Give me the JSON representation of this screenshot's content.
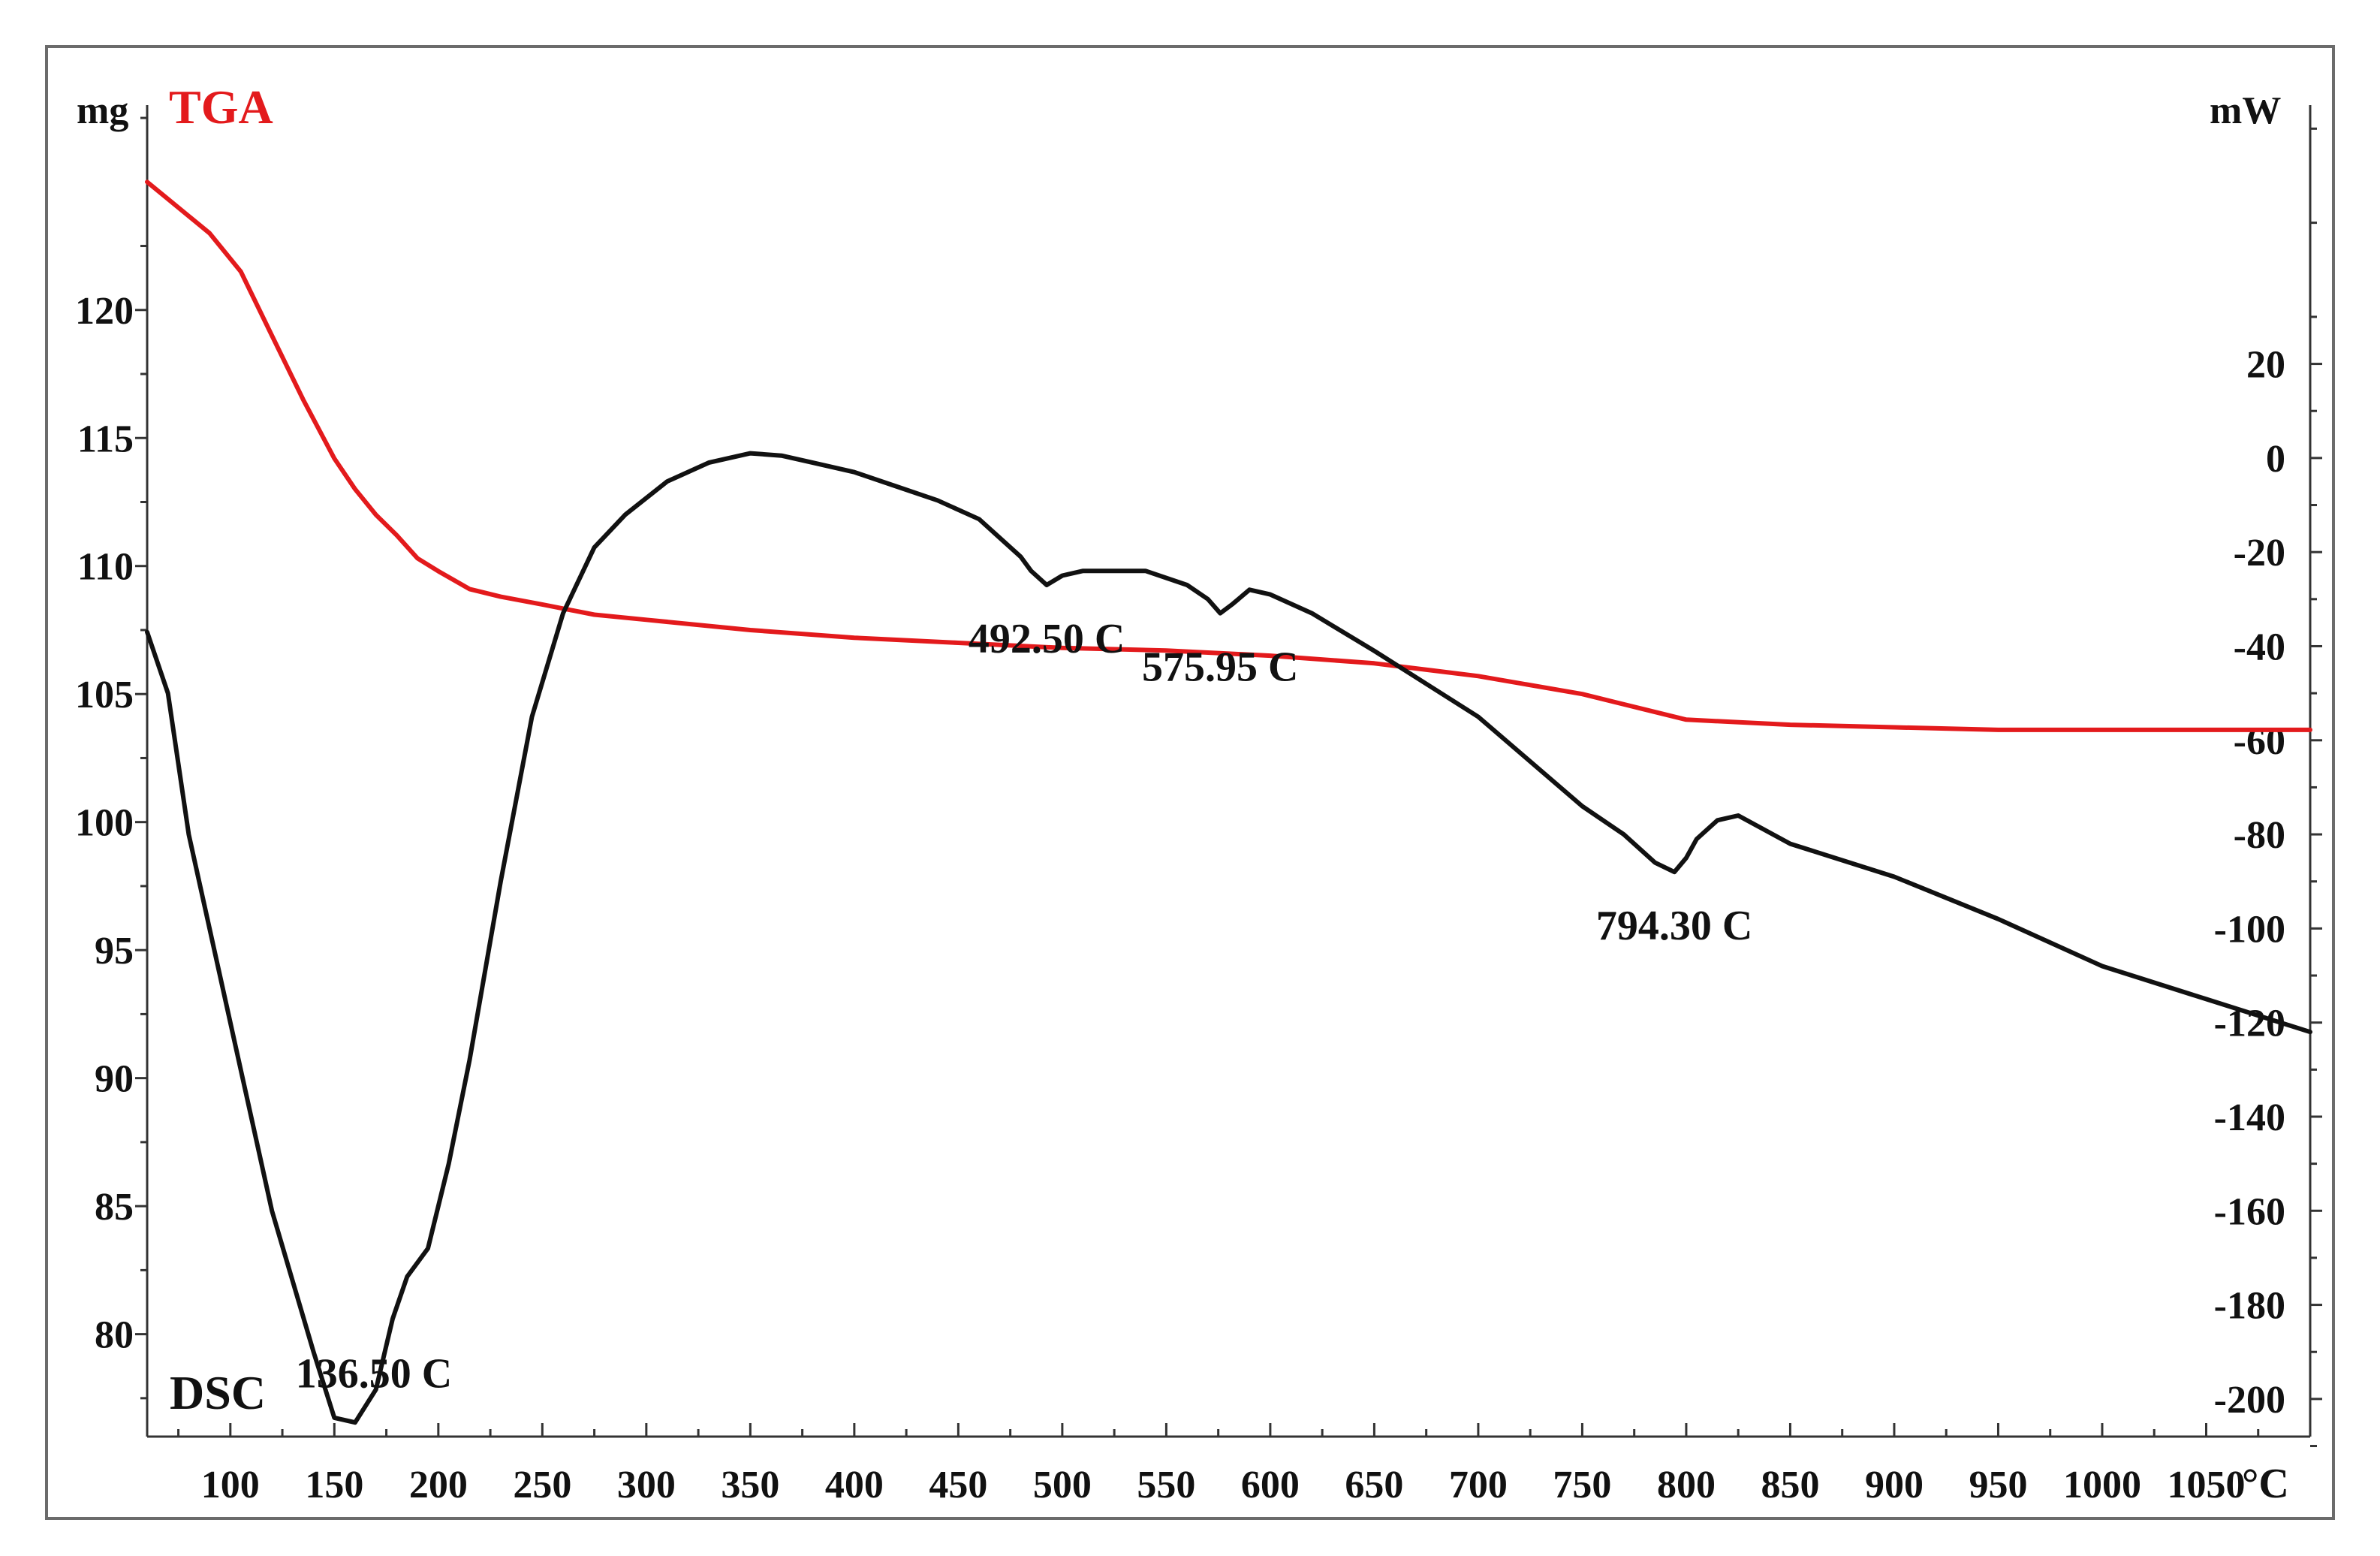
{
  "chart_data": {
    "type": "line",
    "title": "",
    "x_unit": "°C",
    "left_axis_unit": "mg",
    "right_axis_unit": "mW",
    "xlim": [
      60,
      1100
    ],
    "ylim_left": [
      76,
      128
    ],
    "ylim_right": [
      -208,
      75
    ],
    "x_ticks": [
      100,
      150,
      200,
      250,
      300,
      350,
      400,
      450,
      500,
      550,
      600,
      650,
      700,
      750,
      800,
      850,
      900,
      950,
      1000,
      1050
    ],
    "x_tick_labels": [
      "100",
      "150",
      "200",
      "250",
      "300",
      "350",
      "400",
      "450",
      "500",
      "550",
      "600",
      "650",
      "700",
      "750",
      "800",
      "850",
      "900",
      "950",
      "1000",
      "1050"
    ],
    "left_ticks": [
      80,
      85,
      90,
      95,
      100,
      105,
      110,
      115,
      120
    ],
    "left_tick_labels": [
      "80",
      "85",
      "90",
      "95",
      "100",
      "105",
      "110",
      "115",
      "120"
    ],
    "right_ticks": [
      20,
      0,
      -20,
      -40,
      -60,
      -80,
      -100,
      -120,
      -140,
      -160,
      -180,
      -200
    ],
    "right_tick_labels": [
      "20",
      "0",
      "-20",
      "-40",
      "-60",
      "-80",
      "-100",
      "-120",
      "-140",
      "-160",
      "-180",
      "-200"
    ],
    "colors": {
      "tga": "#e31a1c",
      "dsc": "#111111",
      "frame": "#6b6b6b"
    },
    "series": [
      {
        "name": "TGA",
        "axis": "left",
        "x": [
          60,
          75,
          90,
          105,
          120,
          135,
          150,
          160,
          170,
          180,
          190,
          200,
          215,
          230,
          250,
          275,
          300,
          350,
          400,
          450,
          500,
          550,
          600,
          650,
          700,
          750,
          780,
          800,
          850,
          900,
          950,
          1000,
          1050,
          1100
        ],
        "y": [
          125,
          124,
          123,
          121.5,
          119,
          116.5,
          114.2,
          113,
          112,
          111.2,
          110.3,
          109.8,
          109.1,
          108.8,
          108.5,
          108.1,
          107.9,
          107.5,
          107.2,
          107,
          106.8,
          106.7,
          106.5,
          106.2,
          105.7,
          105,
          104.4,
          104,
          103.8,
          103.7,
          103.6,
          103.6,
          103.6,
          103.6
        ]
      },
      {
        "name": "DSC",
        "axis": "right",
        "x": [
          60,
          70,
          80,
          90,
          100,
          110,
          120,
          130,
          140,
          150,
          160,
          170,
          178,
          185,
          195,
          205,
          215,
          230,
          245,
          260,
          275,
          290,
          310,
          330,
          350,
          365,
          380,
          400,
          420,
          440,
          460,
          470,
          480,
          485,
          492.5,
          500,
          510,
          520,
          540,
          560,
          570,
          575.95,
          582,
          590,
          600,
          620,
          650,
          700,
          750,
          770,
          785,
          794.3,
          800,
          805,
          815,
          825,
          850,
          900,
          950,
          1000,
          1050,
          1100
        ],
        "y": [
          -37,
          -50,
          -80,
          -100,
          -120,
          -140,
          -160,
          -175,
          -190,
          -204,
          -205,
          -198,
          -183,
          -174,
          -168,
          -150,
          -128,
          -90,
          -55,
          -33,
          -19,
          -12,
          -5,
          -1,
          1,
          0.5,
          -1,
          -3,
          -6,
          -9,
          -13,
          -17,
          -21,
          -24,
          -27,
          -25,
          -24,
          -24,
          -24,
          -27,
          -30,
          -33,
          -31,
          -28,
          -29,
          -33,
          -41,
          -55,
          -74,
          -80,
          -86,
          -88,
          -85,
          -81,
          -77,
          -76,
          -82,
          -89,
          -98,
          -108,
          -115,
          -122
        ]
      }
    ],
    "annotations": [
      {
        "text": "136.50 C",
        "x": 136.5,
        "series": "DSC"
      },
      {
        "text": "492.50 C",
        "x": 492.5,
        "series": "DSC"
      },
      {
        "text": "575.95 C",
        "x": 575.95,
        "series": "DSC"
      },
      {
        "text": "794.30 C",
        "x": 794.3,
        "series": "DSC"
      }
    ],
    "series_labels": {
      "tga": "TGA",
      "dsc": "DSC"
    }
  }
}
